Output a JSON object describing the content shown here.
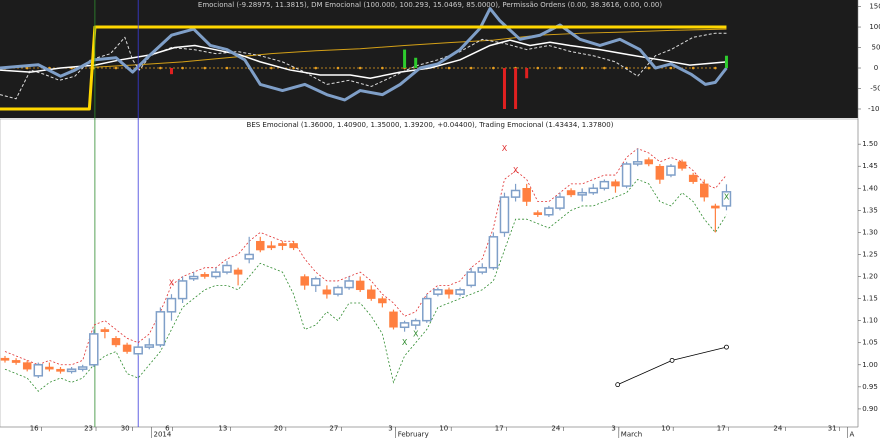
{
  "chart_data": [
    {
      "type": "line",
      "title": "Emocional (-9.28975, 11.3815), DM Emocional (100.000, 100.293, 15.0469, 85.0000), Permissão Ordens (0.00, 38.3616, 0.00, 0.00)",
      "xlim": [
        -0.45,
        76.85
      ],
      "ylim": [
        -122,
        166
      ],
      "yticks": [
        150,
        100,
        50,
        0,
        -50,
        -100
      ],
      "series": [
        {
          "type": "line",
          "color": "#e8a020",
          "style": "dots",
          "x": [
            0,
            2,
            4,
            6,
            8,
            10,
            12,
            14,
            16,
            18,
            20,
            22,
            24,
            26,
            28,
            30,
            32,
            34,
            36,
            38,
            40,
            42,
            44,
            46,
            48,
            50,
            52,
            54,
            56,
            58,
            60,
            62,
            64
          ],
          "values": [
            0,
            0,
            0,
            0,
            0,
            0,
            0,
            0,
            0,
            0,
            0,
            0,
            0,
            0,
            0,
            0,
            0,
            0,
            0,
            0,
            0,
            0,
            0,
            0,
            0,
            0,
            0,
            0,
            0,
            0,
            0,
            0,
            0
          ]
        },
        {
          "type": "line",
          "color": "#d4a017",
          "style": "solid",
          "width": 1,
          "x": [
            8,
            12,
            16,
            20,
            24,
            28,
            32,
            36,
            40,
            44,
            48,
            52,
            56,
            60,
            65
          ],
          "values": [
            2,
            8,
            15,
            25,
            35,
            42,
            47,
            55,
            62,
            68,
            80,
            85,
            88,
            92,
            95
          ]
        },
        {
          "type": "line",
          "color": "#dddddd",
          "style": "dashed",
          "width": 1,
          "x": [
            -0.45,
            1,
            2.3,
            3.5,
            4.9,
            6.3,
            7.7,
            9.5,
            10.8,
            11.5,
            12.1,
            13.1,
            15,
            17,
            19,
            21,
            23,
            25,
            27,
            29,
            31,
            33,
            35,
            37,
            39,
            41,
            43,
            45,
            47,
            49,
            51,
            53,
            55,
            57,
            58.6,
            60,
            62,
            64,
            65
          ],
          "values": [
            -65,
            -75,
            -5,
            -15,
            -30,
            -20,
            20,
            35,
            75,
            20,
            -5,
            30,
            50,
            45,
            35,
            40,
            30,
            15,
            -10,
            -40,
            -30,
            -45,
            -20,
            5,
            20,
            40,
            70,
            60,
            45,
            55,
            40,
            30,
            15,
            -20,
            30,
            45,
            75,
            85,
            85
          ]
        },
        {
          "type": "line",
          "color": "#ffffff",
          "style": "solid",
          "width": 1.5,
          "x": [
            -0.45,
            2.3,
            5,
            8.1,
            10.4,
            13.1,
            15.3,
            17.1,
            18.9,
            21.2,
            23,
            25.7,
            28.4,
            31.1,
            32.9,
            35.6,
            38.3,
            41,
            43.7,
            45.5,
            47.3,
            49.1,
            50.9,
            53.6,
            56.3,
            59,
            61.7,
            65
          ],
          "values": [
            -5,
            -10,
            0,
            7,
            20,
            32,
            50,
            55,
            45,
            32,
            15,
            -5,
            -17,
            -17,
            -25,
            -10,
            0,
            20,
            55,
            68,
            55,
            63,
            55,
            45,
            32,
            20,
            7,
            15
          ]
        },
        {
          "type": "line",
          "color": "#7f9fc8",
          "style": "solid",
          "width": 3,
          "x": [
            -0.45,
            3,
            5,
            6.3,
            8,
            10,
            11.5,
            13,
            15,
            17,
            18.5,
            20,
            21.6,
            23,
            25,
            27,
            29,
            30.6,
            32,
            34,
            35.6,
            37.4,
            39,
            41,
            42.8,
            43.7,
            44.6,
            46.4,
            48.2,
            50,
            51.8,
            53.6,
            55.4,
            57.2,
            58.6,
            60,
            61.8,
            63.1,
            64,
            65
          ],
          "values": [
            0,
            8,
            -20,
            -5,
            20,
            25,
            -10,
            30,
            80,
            95,
            55,
            45,
            20,
            -40,
            -55,
            -40,
            -65,
            -78,
            -55,
            -65,
            -40,
            0,
            10,
            45,
            97,
            145,
            115,
            70,
            80,
            105,
            70,
            55,
            70,
            45,
            0,
            10,
            -15,
            -40,
            -35,
            0
          ]
        },
        {
          "type": "line",
          "color": "#ffd700",
          "style": "solid",
          "width": 3,
          "x": [
            -0.45,
            7.6,
            8.1,
            65
          ],
          "values": [
            -100,
            -100,
            100,
            100
          ]
        },
        {
          "type": "bar",
          "color": "#2ecc2e",
          "x": [
            36,
            37,
            65
          ],
          "values": [
            45,
            25,
            30
          ]
        },
        {
          "type": "bar",
          "color": "#e02020",
          "x": [
            15,
            45,
            46,
            47
          ],
          "values": [
            -15,
            -100,
            -100,
            -25
          ]
        }
      ]
    },
    {
      "type": "candlestick",
      "title": "BES Emocional (1.36000, 1.40900, 1.35000, 1.39200, +0.04400), Trading Emocional (1.43434, 1.37800)",
      "xlim": [
        -0.45,
        76.85
      ],
      "ylim": [
        0.859,
        1.557
      ],
      "yticks": [
        {
          "value": 1.5,
          "label": "1.50"
        },
        1.45,
        {
          "value": 1.4,
          "label": "1.40"
        },
        1.35,
        {
          "value": 1.3,
          "label": "1.30"
        },
        1.25,
        {
          "value": 1.2,
          "label": "1.20"
        },
        1.15,
        {
          "value": 1.1,
          "label": "1.10"
        },
        1.05,
        {
          "value": 1.0,
          "label": "1.00"
        },
        0.95,
        {
          "value": 0.9,
          "label": "0.90"
        }
      ],
      "xticks": [
        {
          "value": 3.3,
          "label": "16"
        },
        {
          "value": 8.2,
          "label": "23"
        },
        {
          "value": 11.5,
          "label": "30"
        },
        {
          "value": 15.1,
          "label": "6"
        },
        {
          "value": 20.3,
          "label": "13"
        },
        {
          "value": 25.3,
          "label": "20"
        },
        {
          "value": 30.3,
          "label": "27"
        },
        {
          "value": 35.2,
          "label": "3"
        },
        {
          "value": 40.2,
          "label": "10"
        },
        {
          "value": 45.2,
          "label": "17"
        },
        {
          "value": 50.3,
          "label": "24"
        },
        {
          "value": 55.3,
          "label": "3"
        },
        {
          "value": 60.2,
          "label": "10"
        },
        {
          "value": 65.2,
          "label": "17"
        },
        {
          "value": 70.3,
          "label": "24"
        },
        {
          "value": 75.2,
          "label": "31"
        }
      ],
      "month_labels": [
        {
          "value": 13.2,
          "label": "2014"
        },
        {
          "value": 35.2,
          "label": "February"
        },
        {
          "value": 55.3,
          "label": "March"
        },
        {
          "value": 75.9,
          "label": "A"
        }
      ],
      "up_color": "#7f9fc8",
      "down_color": "#ff7f3f",
      "open": [
        1.015,
        1.01,
        1.005,
        0.975,
        0.995,
        0.99,
        0.985,
        0.99,
        1.0,
        1.08,
        1.06,
        1.045,
        1.025,
        1.04,
        1.045,
        1.12,
        1.15,
        1.195,
        1.205,
        1.2,
        1.21,
        1.215,
        1.24,
        1.28,
        1.27,
        1.275,
        1.275,
        1.2,
        1.18,
        1.17,
        1.16,
        1.175,
        1.19,
        1.17,
        1.15,
        1.12,
        1.085,
        1.09,
        1.1,
        1.16,
        1.17,
        1.16,
        1.18,
        1.21,
        1.22,
        1.3,
        1.38,
        1.4,
        1.345,
        1.34,
        1.355,
        1.395,
        1.385,
        1.39,
        1.4,
        1.415,
        1.405,
        1.455,
        1.465,
        1.45,
        1.43,
        1.46,
        1.43,
        1.41,
        1.36,
        1.36
      ],
      "high": [
        1.02,
        1.015,
        1.01,
        1.005,
        1.005,
        0.995,
        0.995,
        1.0,
        1.08,
        1.085,
        1.065,
        1.05,
        1.045,
        1.06,
        1.13,
        1.16,
        1.2,
        1.21,
        1.21,
        1.22,
        1.235,
        1.22,
        1.29,
        1.29,
        1.28,
        1.28,
        1.28,
        1.205,
        1.2,
        1.18,
        1.18,
        1.2,
        1.2,
        1.18,
        1.155,
        1.125,
        1.1,
        1.105,
        1.16,
        1.175,
        1.175,
        1.175,
        1.22,
        1.23,
        1.3,
        1.39,
        1.41,
        1.41,
        1.35,
        1.36,
        1.39,
        1.4,
        1.4,
        1.41,
        1.42,
        1.42,
        1.46,
        1.49,
        1.47,
        1.455,
        1.455,
        1.465,
        1.435,
        1.42,
        1.365,
        1.409
      ],
      "low": [
        1.005,
        1.0,
        0.985,
        0.97,
        0.985,
        0.98,
        0.98,
        0.985,
        0.995,
        1.06,
        1.04,
        1.025,
        1.02,
        1.035,
        1.04,
        1.1,
        1.14,
        1.19,
        1.195,
        1.195,
        1.205,
        1.18,
        1.23,
        1.255,
        1.26,
        1.26,
        1.26,
        1.17,
        1.165,
        1.15,
        1.155,
        1.17,
        1.165,
        1.145,
        1.13,
        1.08,
        1.075,
        1.08,
        1.095,
        1.155,
        1.15,
        1.155,
        1.175,
        1.205,
        1.215,
        1.29,
        1.37,
        1.36,
        1.335,
        1.335,
        1.35,
        1.38,
        1.37,
        1.385,
        1.395,
        1.39,
        1.4,
        1.45,
        1.45,
        1.41,
        1.425,
        1.44,
        1.41,
        1.37,
        1.3,
        1.35
      ],
      "close": [
        1.01,
        1.005,
        0.99,
        1.0,
        0.99,
        0.985,
        0.99,
        0.995,
        1.07,
        1.075,
        1.045,
        1.03,
        1.04,
        1.045,
        1.12,
        1.15,
        1.19,
        1.2,
        1.2,
        1.21,
        1.225,
        1.205,
        1.25,
        1.26,
        1.265,
        1.27,
        1.265,
        1.18,
        1.195,
        1.16,
        1.175,
        1.19,
        1.17,
        1.15,
        1.14,
        1.085,
        1.095,
        1.1,
        1.15,
        1.17,
        1.16,
        1.17,
        1.21,
        1.22,
        1.29,
        1.38,
        1.395,
        1.37,
        1.34,
        1.355,
        1.38,
        1.385,
        1.39,
        1.4,
        1.415,
        1.405,
        1.455,
        1.46,
        1.455,
        1.42,
        1.45,
        1.445,
        1.415,
        1.38,
        1.355,
        1.392
      ],
      "bands": [
        {
          "color": "#e03030",
          "values": [
            1.03,
            1.02,
            1.01,
            1.0,
            1.01,
            1.0,
            1.0,
            1.01,
            1.09,
            1.1,
            1.08,
            1.06,
            1.05,
            1.07,
            1.12,
            1.18,
            1.2,
            1.21,
            1.22,
            1.22,
            1.24,
            1.25,
            1.28,
            1.3,
            1.29,
            1.28,
            1.28,
            1.24,
            1.21,
            1.19,
            1.19,
            1.2,
            1.21,
            1.19,
            1.16,
            1.14,
            1.11,
            1.12,
            1.16,
            1.18,
            1.18,
            1.19,
            1.22,
            1.24,
            1.31,
            1.42,
            1.44,
            1.42,
            1.37,
            1.37,
            1.39,
            1.41,
            1.41,
            1.42,
            1.43,
            1.43,
            1.47,
            1.49,
            1.48,
            1.46,
            1.47,
            1.46,
            1.44,
            1.41,
            1.4,
            1.43
          ]
        },
        {
          "color": "#2e8b2e",
          "values": [
            0.99,
            0.98,
            0.97,
            0.94,
            0.96,
            0.97,
            0.96,
            0.97,
            1.0,
            1.02,
            1.03,
            0.98,
            0.97,
            1.0,
            1.03,
            1.08,
            1.13,
            1.15,
            1.17,
            1.18,
            1.18,
            1.17,
            1.2,
            1.23,
            1.22,
            1.21,
            1.16,
            1.08,
            1.09,
            1.12,
            1.1,
            1.14,
            1.14,
            1.11,
            1.07,
            0.96,
            1.02,
            1.05,
            1.08,
            1.13,
            1.14,
            1.15,
            1.16,
            1.17,
            1.19,
            1.26,
            1.33,
            1.33,
            1.32,
            1.31,
            1.33,
            1.35,
            1.36,
            1.36,
            1.37,
            1.38,
            1.39,
            1.42,
            1.41,
            1.37,
            1.36,
            1.39,
            1.37,
            1.33,
            1.3,
            1.34
          ]
        }
      ],
      "trend": {
        "color": "#000000",
        "x": [
          55.2,
          60.1,
          65
        ],
        "values": [
          0.955,
          1.01,
          1.04
        ]
      },
      "markers": [
        {
          "x": 15,
          "value": 1.185,
          "label": "X",
          "color": "#e03030"
        },
        {
          "x": 45,
          "value": 1.49,
          "label": "X",
          "color": "#e03030"
        },
        {
          "x": 46,
          "value": 1.44,
          "label": "X",
          "color": "#e03030"
        },
        {
          "x": 36,
          "value": 1.05,
          "label": "X",
          "color": "#2e8b2e"
        },
        {
          "x": 37,
          "value": 1.07,
          "label": "X",
          "color": "#2e8b2e"
        },
        {
          "x": 65,
          "value": 1.38,
          "label": "X",
          "color": "#2e8b2e"
        }
      ],
      "vlines": [
        {
          "x": 8.1,
          "color": "#2e8b2e"
        },
        {
          "x": 12,
          "color": "#3b3bdc"
        }
      ]
    }
  ]
}
